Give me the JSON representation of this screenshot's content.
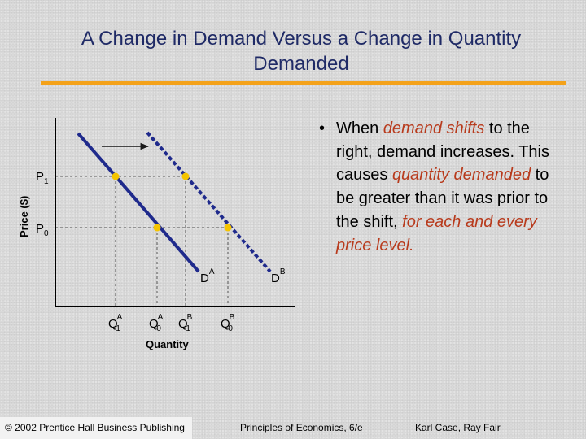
{
  "slide": {
    "title_line1": "A Change in Demand Versus a Change in Quantity",
    "title_line2": "Demanded",
    "accent_color": "#f4a21a",
    "title_color": "#1f2a66",
    "highlight_color": "#b83a1c"
  },
  "diagram": {
    "y_axis_label": "Price ($)",
    "x_axis_label": "Quantity",
    "price_labels": [
      {
        "base": "P",
        "sub": "1"
      },
      {
        "base": "P",
        "sub": "0"
      }
    ],
    "quantity_labels": [
      {
        "base": "Q",
        "sup": "A",
        "sub": "1"
      },
      {
        "base": "Q",
        "sup": "A",
        "sub": "0"
      },
      {
        "base": "Q",
        "sup": "B",
        "sub": "1"
      },
      {
        "base": "Q",
        "sup": "B",
        "sub": "0"
      }
    ],
    "curve_labels": [
      {
        "base": "D",
        "sup": "A"
      },
      {
        "base": "D",
        "sup": "B"
      }
    ],
    "point_color": "#f5c400",
    "curve_color": "#1f2a8c"
  },
  "bullet": {
    "p1": "When ",
    "p2": "demand shifts",
    "p3": " to the right, demand increases. This causes ",
    "p4": "quantity demanded",
    "p5": " to be greater than it was prior to the shift, ",
    "p6": "for each and every price level."
  },
  "footer": {
    "copyright": "© 2002 Prentice Hall Business Publishing",
    "book": "Principles of Economics, 6/e",
    "authors": "Karl Case, Ray Fair"
  }
}
